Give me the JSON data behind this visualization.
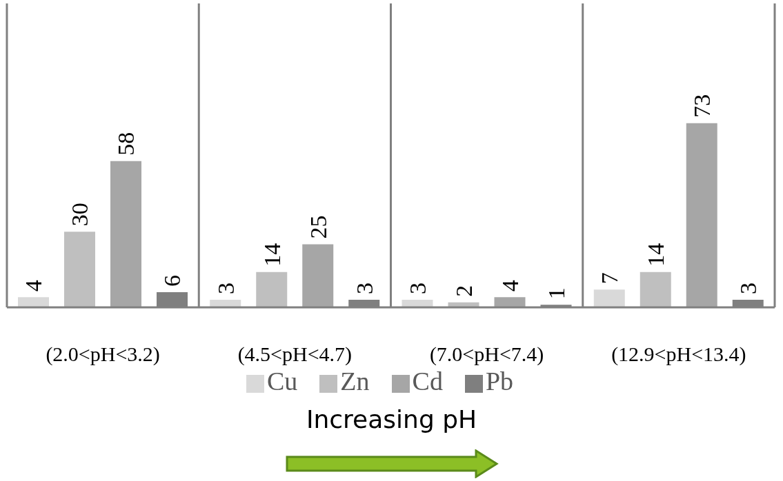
{
  "chart_data": {
    "type": "bar",
    "categories": [
      "(2.0<pH<3.2)",
      "(4.5<pH<4.7)",
      "(7.0<pH<7.4)",
      "(12.9<pH<13.4)"
    ],
    "series": [
      {
        "name": "Cu",
        "color": "#d9d9d9",
        "values": [
          4,
          3,
          3,
          7
        ]
      },
      {
        "name": "Zn",
        "color": "#bfbfbf",
        "values": [
          30,
          14,
          2,
          14
        ]
      },
      {
        "name": "Cd",
        "color": "#a6a6a6",
        "values": [
          58,
          25,
          4,
          73
        ]
      },
      {
        "name": "Pb",
        "color": "#7f7f7f",
        "values": [
          6,
          3,
          1,
          3
        ]
      }
    ],
    "data_labels": true,
    "grid": "x",
    "legend": "bottom",
    "annotations": [
      "Increasing pH"
    ]
  }
}
